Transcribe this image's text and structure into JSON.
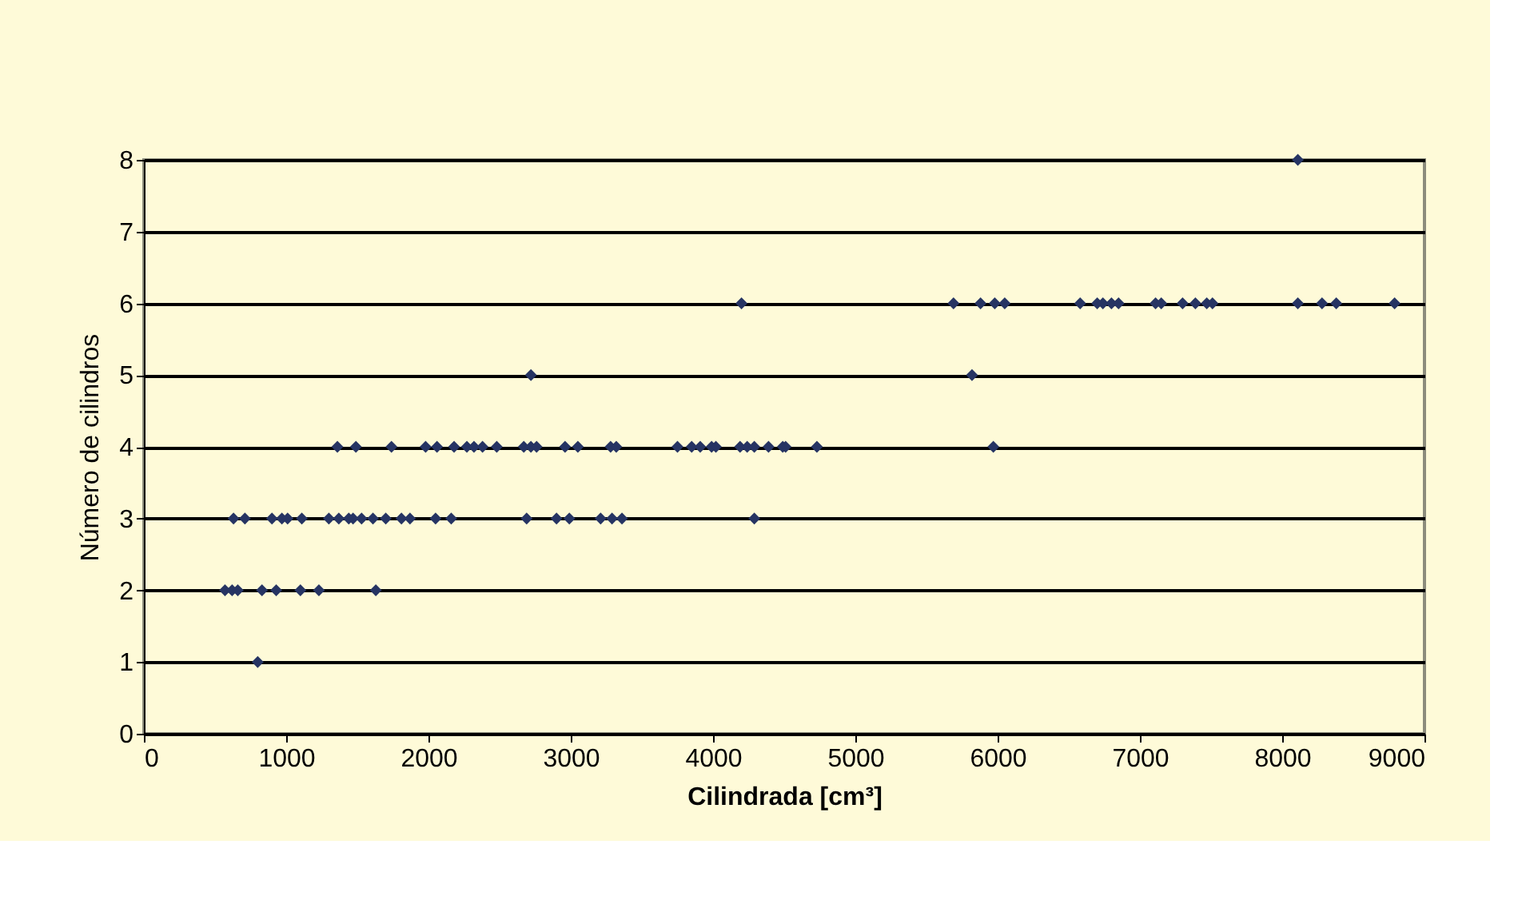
{
  "chart_data": {
    "type": "scatter",
    "xlabel": "Cilindrada [cm³]",
    "ylabel": "Número de cilindros",
    "xlim": [
      0,
      9000
    ],
    "xticks": [
      0,
      1000,
      2000,
      3000,
      4000,
      5000,
      6000,
      7000,
      8000,
      9000
    ],
    "ylim": [
      0,
      8
    ],
    "yticks": [
      0,
      1,
      2,
      3,
      4,
      5,
      6,
      7,
      8
    ],
    "grid": "y",
    "marker": "diamond",
    "series": [
      {
        "color": "#263463",
        "x": [
          800,
          570,
          620,
          660,
          830,
          930,
          1100,
          1230,
          1630,
          630,
          710,
          900,
          970,
          1010,
          1110,
          1300,
          1370,
          1440,
          1470,
          1530,
          1610,
          1700,
          1810,
          1870,
          2050,
          2160,
          2690,
          2900,
          2990,
          3210,
          3290,
          3360,
          4290,
          1360,
          1490,
          1740,
          1980,
          2060,
          2180,
          2270,
          2320,
          2380,
          2480,
          2670,
          2720,
          2760,
          2960,
          3050,
          3280,
          3320,
          3750,
          3850,
          3910,
          3990,
          4020,
          4190,
          4240,
          4290,
          4390,
          4490,
          4510,
          4730,
          5970,
          2720,
          5820,
          4200,
          5690,
          5880,
          5980,
          6050,
          6580,
          6700,
          6740,
          6800,
          6850,
          7110,
          7150,
          7300,
          7390,
          7470,
          7510,
          8110,
          8280,
          8380,
          8790,
          8110
        ],
        "values": [
          1,
          2,
          2,
          2,
          2,
          2,
          2,
          2,
          2,
          3,
          3,
          3,
          3,
          3,
          3,
          3,
          3,
          3,
          3,
          3,
          3,
          3,
          3,
          3,
          3,
          3,
          3,
          3,
          3,
          3,
          3,
          3,
          3,
          4,
          4,
          4,
          4,
          4,
          4,
          4,
          4,
          4,
          4,
          4,
          4,
          4,
          4,
          4,
          4,
          4,
          4,
          4,
          4,
          4,
          4,
          4,
          4,
          4,
          4,
          4,
          4,
          4,
          4,
          5,
          5,
          6,
          6,
          6,
          6,
          6,
          6,
          6,
          6,
          6,
          6,
          6,
          6,
          6,
          6,
          6,
          6,
          6,
          6,
          6,
          6,
          8
        ]
      }
    ]
  }
}
